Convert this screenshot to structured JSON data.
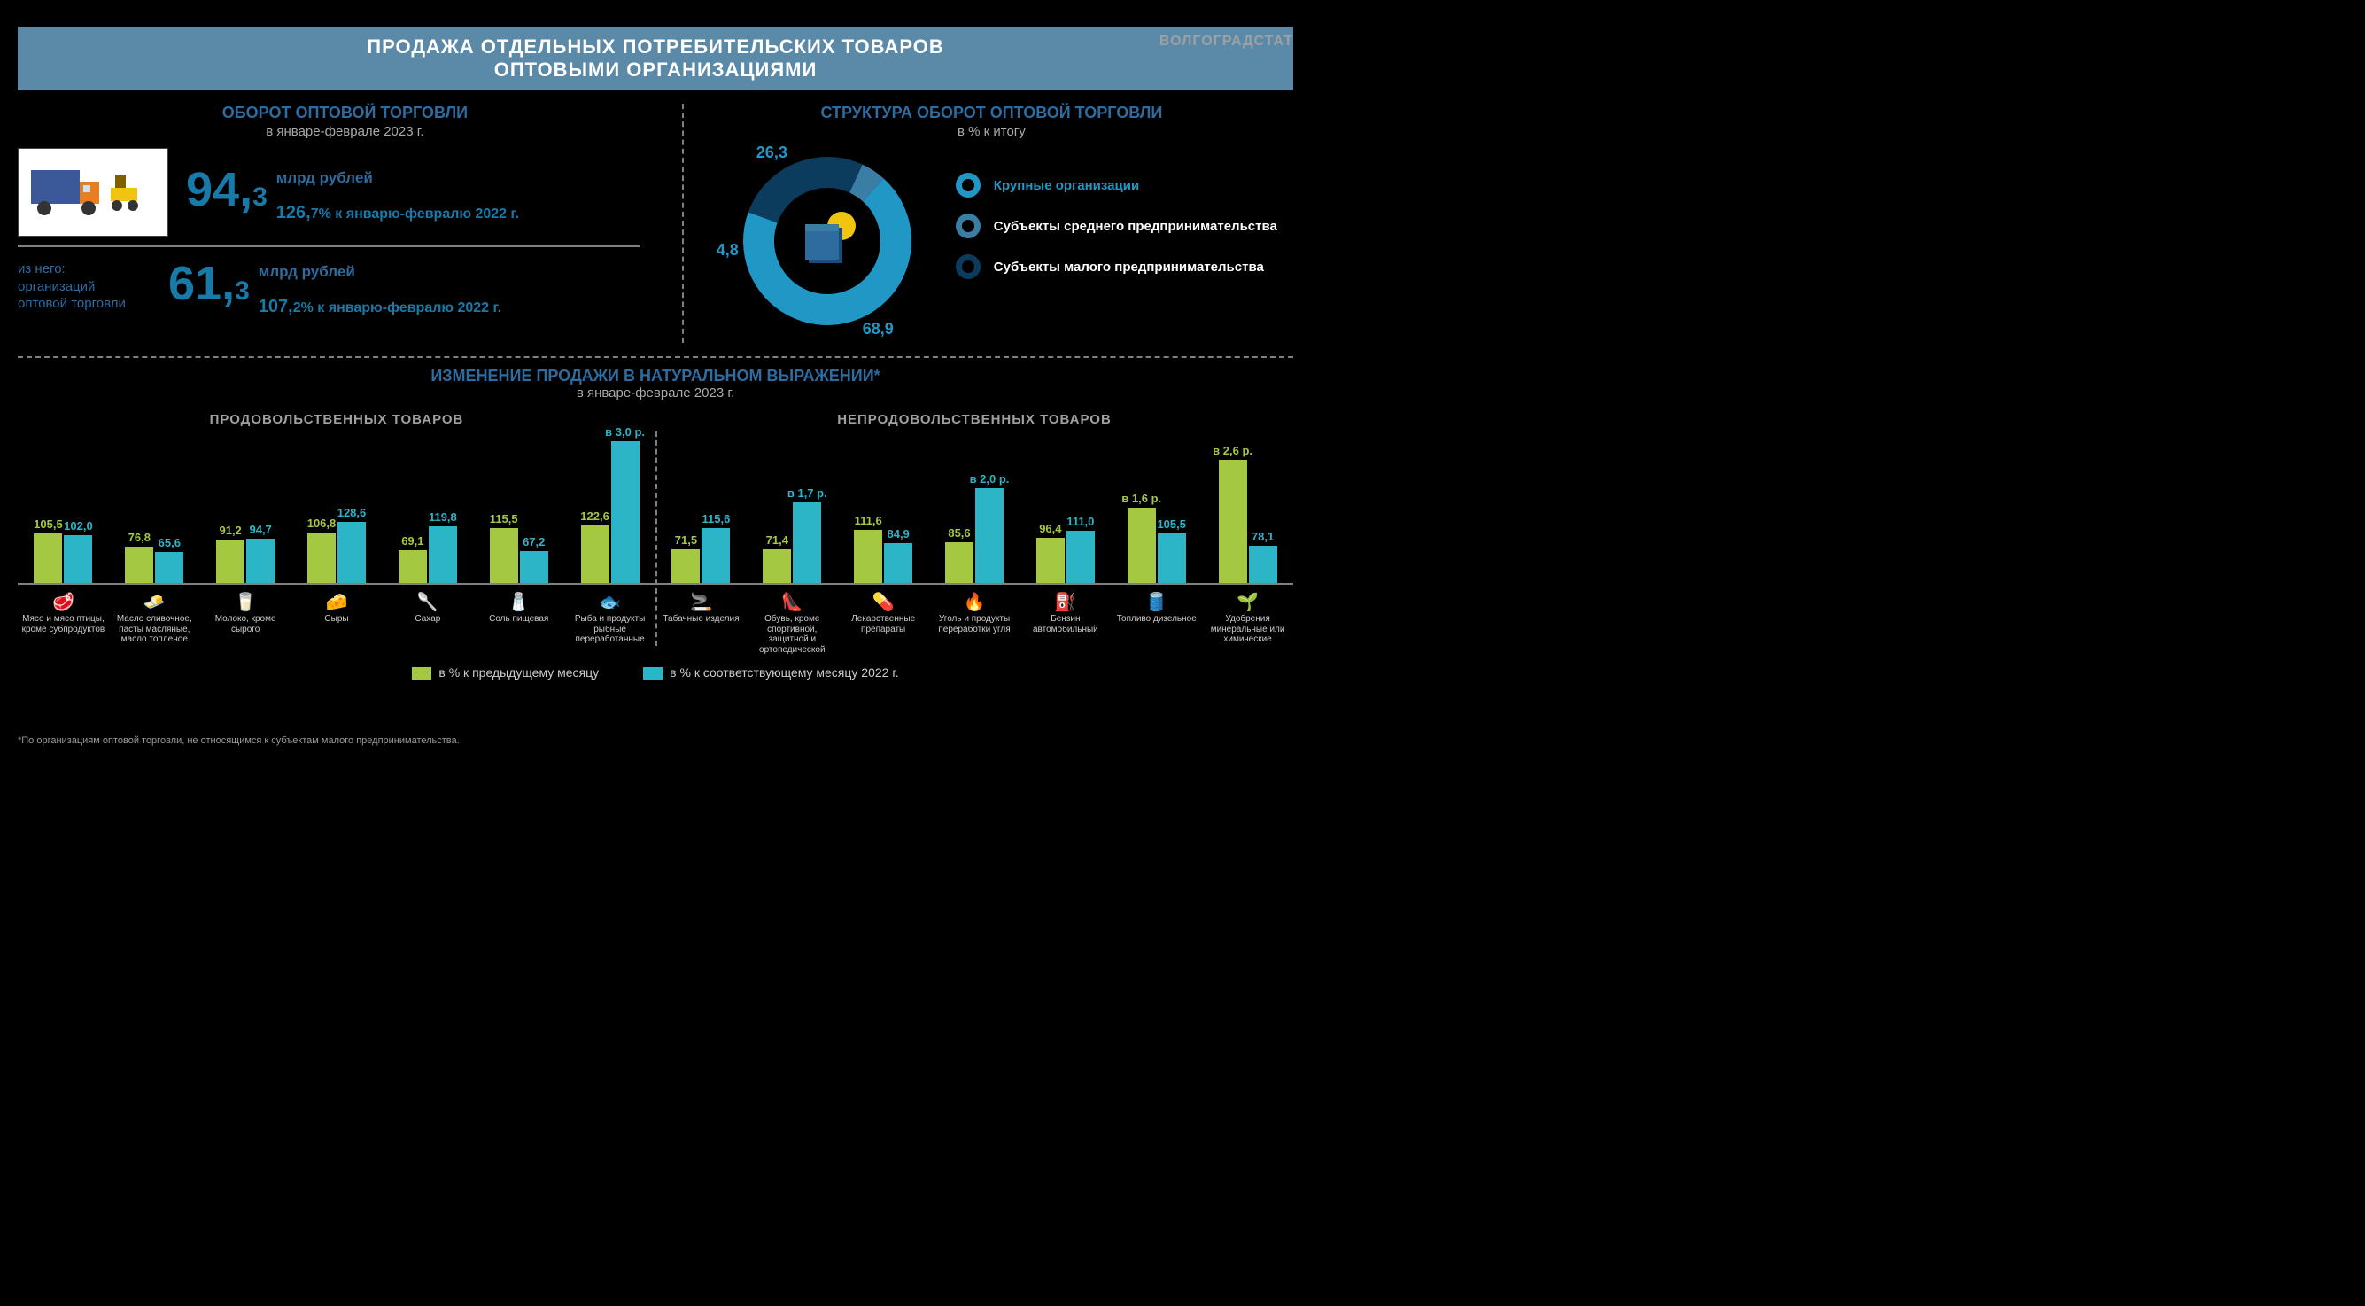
{
  "source": "ВОЛГОГРАДСТАТ",
  "title1": "ПРОДАЖА ОТДЕЛЬНЫХ ПОТРЕБИТЕЛЬСКИХ ТОВАРОВ",
  "title2": "ОПТОВЫМИ ОРГАНИЗАЦИЯМИ",
  "colors": {
    "title_bar": "#5b8aa8",
    "accent": "#2e6b9e",
    "bar_green": "#a4c842",
    "bar_cyan": "#2cb5c7",
    "donut_large": "#2197c5",
    "donut_med": "#0b3c5d",
    "donut_small": "#3b7ea5"
  },
  "turnover": {
    "title": "ОБОРОТ ОПТОВОЙ ТОРГОВЛИ",
    "subtitle": "в январе-феврале 2023 г.",
    "main_value": "94,",
    "main_dec": "3",
    "unit": "млрд рублей",
    "main_pct": "126,",
    "main_pct_dec": "7% к январю-февралю 2022 г.",
    "sub_label1": "из него:",
    "sub_label2": "организаций",
    "sub_label3": "оптовой торговли",
    "sub_value": "61,",
    "sub_dec": "3",
    "sub_pct": "107,",
    "sub_pct_dec": "2% к январю-февралю 2022 г."
  },
  "donut": {
    "title": "СТРУКТУРА ОБОРОТ ОПТОВОЙ ТОРГОВЛИ",
    "subtitle": "в % к итогу",
    "segments": [
      {
        "label": "Крупные организации",
        "value": 68.9,
        "value_str": "68,9",
        "color": "#2197c5"
      },
      {
        "label": "Субъекты среднего предпринимательства",
        "value": 4.8,
        "value_str": "4,8",
        "color": "#3b7ea5"
      },
      {
        "label": "Субъекты малого предпринимательства",
        "value": 26.3,
        "value_str": "26,3",
        "color": "#0b3c5d"
      }
    ]
  },
  "change": {
    "title": "ИЗМЕНЕНИЕ ПРОДАЖИ В НАТУРАЛЬНОМ ВЫРАЖЕНИИ*",
    "subtitle": "в январе-феврале 2023 г.",
    "food_title": "ПРОДОВОЛЬСТВЕННЫХ ТОВАРОВ",
    "nonfood_title": "НЕПРОДОВОЛЬСТВЕННЫХ ТОВАРОВ",
    "max_height": 300,
    "food": [
      {
        "label": "Мясо и мясо птицы, кроме субпродуктов",
        "v1": 105.5,
        "v1s": "105,5",
        "v2": 102.0,
        "v2s": "102,0",
        "icon": "🥩"
      },
      {
        "label": "Масло сливочное, пасты масляные, масло топленое",
        "v1": 76.8,
        "v1s": "76,8",
        "v2": 65.6,
        "v2s": "65,6",
        "icon": "🧈"
      },
      {
        "label": "Молоко, кроме сырого",
        "v1": 91.2,
        "v1s": "91,2",
        "v2": 94.7,
        "v2s": "94,7",
        "icon": "🥛"
      },
      {
        "label": "Сыры",
        "v1": 106.8,
        "v1s": "106,8",
        "v2": 128.6,
        "v2s": "128,6",
        "icon": "🧀"
      },
      {
        "label": "Сахар",
        "v1": 69.1,
        "v1s": "69,1",
        "v2": 119.8,
        "v2s": "119,8",
        "icon": "🥄"
      },
      {
        "label": "Соль пищевая",
        "v1": 115.5,
        "v1s": "115,5",
        "v2": 67.2,
        "v2s": "67,2",
        "icon": "🧂"
      },
      {
        "label": "Рыба и продукты рыбные переработанные",
        "v1": 122.6,
        "v1s": "122,6",
        "v2": 300,
        "v2s": "в 3,0 р.",
        "icon": "🐟"
      }
    ],
    "nonfood": [
      {
        "label": "Табачные изделия",
        "v1": 71.5,
        "v1s": "71,5",
        "v2": 115.6,
        "v2s": "115,6",
        "icon": "🚬"
      },
      {
        "label": "Обувь, кроме спортивной, защитной и ортопедической",
        "v1": 71.4,
        "v1s": "71,4",
        "v2": 170,
        "v2s": "в 1,7 р.",
        "icon": "👠"
      },
      {
        "label": "Лекарственные препараты",
        "v1": 111.6,
        "v1s": "111,6",
        "v2": 84.9,
        "v2s": "84,9",
        "icon": "💊"
      },
      {
        "label": "Уголь и продукты переработки угля",
        "v1": 85.6,
        "v1s": "85,6",
        "v2": 200,
        "v2s": "в 2,0 р.",
        "icon": "🔥"
      },
      {
        "label": "Бензин автомобильный",
        "v1": 96.4,
        "v1s": "96,4",
        "v2": 111.0,
        "v2s": "111,0",
        "icon": "⛽"
      },
      {
        "label": "Топливо дизельное",
        "v1": 160,
        "v1s": "в 1,6 р.",
        "v2": 105.5,
        "v2s": "105,5",
        "icon": "🛢️"
      },
      {
        "label": "Удобрения минеральные или химические",
        "v1": 260,
        "v1s": "в 2,6 р.",
        "v2": 78.1,
        "v2s": "78,1",
        "icon": "🌱"
      }
    ],
    "legend1": "в % к предыдущему месяцу",
    "legend2": "в % к соответствующему месяцу 2022 г."
  },
  "footnote": "*По организациям оптовой торговли, не относящимся к субъектам малого предпринимательства."
}
